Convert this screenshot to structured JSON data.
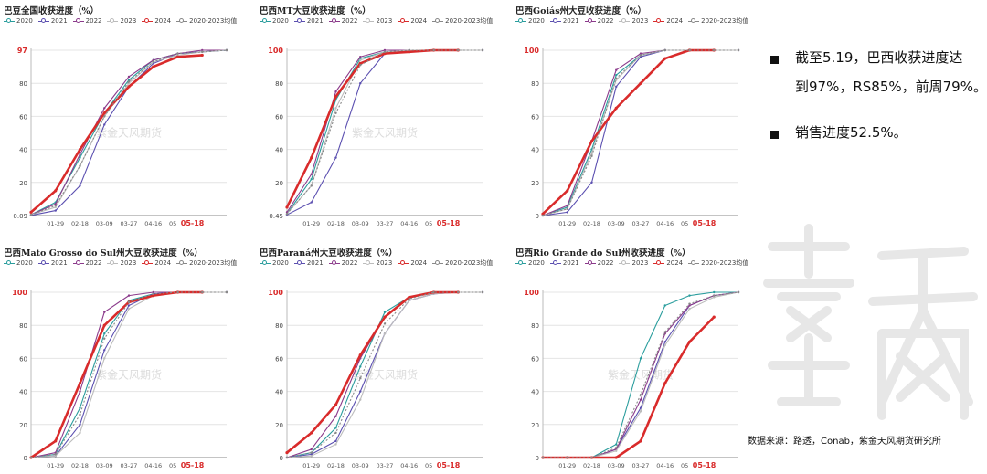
{
  "panels": [
    {
      "title": "巴豆全国收获进度（%）",
      "ylabels": [
        "0.09",
        "20",
        "40",
        "60",
        "80",
        "97"
      ],
      "current_label": "97",
      "x_labels": [
        "01-29",
        "02-18",
        "03-09",
        "03-27",
        "04-16",
        "05",
        "05-18"
      ],
      "watermark": "紫金天风期货"
    },
    {
      "title": "巴西MT大豆收获进度（%）",
      "ylabels": [
        "0.45",
        "20",
        "40",
        "60",
        "80",
        "100"
      ],
      "current_label": "100",
      "x_labels": [
        "01-29",
        "02-18",
        "03-09",
        "03-27",
        "04-16",
        "05",
        "05-18"
      ],
      "watermark": "紫金天风期货"
    },
    {
      "title": "巴西Goiás州大豆收获进度（%）",
      "ylabels": [
        "0",
        "20",
        "40",
        "60",
        "80",
        "100"
      ],
      "current_label": "100",
      "x_labels": [
        "01-29",
        "02-18",
        "03-09",
        "03-27",
        "04-16",
        "05",
        "05-18"
      ],
      "watermark": ""
    },
    {
      "title": "巴西Mato Grosso do Sul州大豆收获进度（%）",
      "ylabels": [
        "0",
        "20",
        "40",
        "60",
        "80",
        "100"
      ],
      "current_label": "100",
      "x_labels": [
        "01-29",
        "02-18",
        "03-09",
        "03-27",
        "04-16",
        "05",
        "05-18"
      ],
      "watermark": "紫金天风期货"
    },
    {
      "title": "巴西Paraná州大豆收获进度（%）",
      "ylabels": [
        "0",
        "20",
        "40",
        "60",
        "80",
        "100"
      ],
      "current_label": "100",
      "x_labels": [
        "01-29",
        "02-18",
        "03-09",
        "03-27",
        "04-16",
        "05",
        "05-18"
      ],
      "watermark": "紫金天风期货"
    },
    {
      "title": "巴西Rio Grande do Sul州收获进度（%）",
      "ylabels": [
        "0",
        "20",
        "40",
        "60",
        "80",
        "100"
      ],
      "current_label": "85",
      "x_labels": [
        "01-29",
        "02-18",
        "03-09",
        "03-27",
        "04-16",
        "05",
        "05-18"
      ],
      "watermark": "紫金天风期货"
    }
  ],
  "legend": [
    "2020",
    "2021",
    "2022",
    "2023",
    "2024",
    "2020-2023均值"
  ],
  "colors": {
    "2020": "#2a9d9d",
    "2021": "#5b4fb0",
    "2022": "#8b3a8b",
    "2023": "#bcbcbc",
    "2024": "#d92b2b",
    "avg": "#888888"
  },
  "bullets": [
    "截至5.19，巴西收获进度达到97%，RS85%，前周79%。",
    "销售进度52.5%。"
  ],
  "bullet_lines": [
    [
      "截至5.19，巴西收获进度达",
      "到97%，RS85%，前周79%。"
    ],
    [
      "销售进度52.5%。"
    ]
  ],
  "source": "数据来源：路透，Conab，紫金天风期货研究所",
  "chart_data": [
    {
      "type": "line",
      "title": "巴豆全国收获进度（%）",
      "x": [
        "01-09",
        "01-29",
        "02-18",
        "03-09",
        "03-27",
        "04-16",
        "05-06",
        "05-18",
        "06-05"
      ],
      "series": [
        {
          "name": "2020",
          "values": [
            0.5,
            8,
            35,
            62,
            82,
            94,
            98,
            99,
            100
          ]
        },
        {
          "name": "2021",
          "values": [
            0.1,
            3,
            18,
            55,
            78,
            92,
            98,
            99,
            100
          ]
        },
        {
          "name": "2022",
          "values": [
            0.5,
            7,
            37,
            65,
            84,
            94,
            98,
            100,
            100
          ]
        },
        {
          "name": "2023",
          "values": [
            0.5,
            5,
            30,
            60,
            80,
            93,
            97,
            99,
            100
          ]
        },
        {
          "name": "2024",
          "values": [
            2,
            15,
            40,
            62,
            78,
            90,
            96,
            97,
            null
          ]
        },
        {
          "name": "2020-2023均值",
          "values": [
            0.4,
            6,
            30,
            60,
            81,
            93,
            98,
            99,
            100
          ]
        }
      ],
      "ylim": [
        0,
        100
      ]
    },
    {
      "type": "line",
      "title": "巴西MT大豆收获进度（%）",
      "x": [
        "01-09",
        "01-29",
        "02-18",
        "03-09",
        "03-27",
        "04-16",
        "05-06",
        "05-18",
        "06-05"
      ],
      "series": [
        {
          "name": "2020",
          "values": [
            1,
            22,
            70,
            95,
            99,
            100,
            100,
            100,
            100
          ]
        },
        {
          "name": "2021",
          "values": [
            0.45,
            8,
            35,
            80,
            98,
            100,
            100,
            100,
            100
          ]
        },
        {
          "name": "2022",
          "values": [
            2,
            25,
            75,
            96,
            100,
            100,
            100,
            100,
            100
          ]
        },
        {
          "name": "2023",
          "values": [
            1,
            18,
            65,
            94,
            99,
            100,
            100,
            100,
            100
          ]
        },
        {
          "name": "2024",
          "values": [
            5,
            35,
            72,
            92,
            98,
            99,
            100,
            100,
            null
          ]
        },
        {
          "name": "2020-2023均值",
          "values": [
            1,
            18,
            62,
            91,
            99,
            100,
            100,
            100,
            100
          ]
        }
      ],
      "ylim": [
        0,
        100
      ]
    },
    {
      "type": "line",
      "title": "巴西Goiás州大豆收获进度（%）",
      "x": [
        "01-09",
        "01-29",
        "02-18",
        "03-09",
        "03-27",
        "04-16",
        "05-06",
        "05-18",
        "06-05"
      ],
      "series": [
        {
          "name": "2020",
          "values": [
            0,
            5,
            40,
            85,
            97,
            100,
            100,
            100,
            100
          ]
        },
        {
          "name": "2021",
          "values": [
            0,
            2,
            20,
            78,
            96,
            100,
            100,
            100,
            100
          ]
        },
        {
          "name": "2022",
          "values": [
            0,
            6,
            45,
            88,
            98,
            100,
            100,
            100,
            100
          ]
        },
        {
          "name": "2023",
          "values": [
            0,
            4,
            38,
            82,
            97,
            100,
            100,
            100,
            100
          ]
        },
        {
          "name": "2024",
          "values": [
            1,
            15,
            45,
            65,
            80,
            95,
            100,
            100,
            null
          ]
        },
        {
          "name": "2020-2023均值",
          "values": [
            0,
            4,
            36,
            83,
            97,
            100,
            100,
            100,
            100
          ]
        }
      ],
      "ylim": [
        0,
        100
      ]
    },
    {
      "type": "line",
      "title": "巴西Mato Grosso do Sul州大豆收获进度（%）",
      "x": [
        "01-09",
        "01-29",
        "02-18",
        "03-09",
        "03-27",
        "04-16",
        "05-06",
        "05-18",
        "06-05"
      ],
      "series": [
        {
          "name": "2020",
          "values": [
            0,
            2,
            30,
            75,
            95,
            99,
            100,
            100,
            100
          ]
        },
        {
          "name": "2021",
          "values": [
            0,
            1,
            20,
            65,
            92,
            99,
            100,
            100,
            100
          ]
        },
        {
          "name": "2022",
          "values": [
            0,
            3,
            40,
            88,
            98,
            100,
            100,
            100,
            100
          ]
        },
        {
          "name": "2023",
          "values": [
            0,
            1,
            15,
            60,
            90,
            98,
            100,
            100,
            100
          ]
        },
        {
          "name": "2024",
          "values": [
            0,
            10,
            45,
            80,
            94,
            98,
            100,
            100,
            null
          ]
        },
        {
          "name": "2020-2023均值",
          "values": [
            0,
            2,
            26,
            72,
            94,
            99,
            100,
            100,
            100
          ]
        }
      ],
      "ylim": [
        0,
        100
      ]
    },
    {
      "type": "line",
      "title": "巴西Paraná州大豆收获进度（%）",
      "x": [
        "01-09",
        "01-29",
        "02-18",
        "03-09",
        "03-27",
        "04-16",
        "05-06",
        "05-18",
        "06-05"
      ],
      "series": [
        {
          "name": "2020",
          "values": [
            0,
            3,
            18,
            55,
            88,
            97,
            100,
            100,
            100
          ]
        },
        {
          "name": "2021",
          "values": [
            0,
            2,
            10,
            40,
            75,
            95,
            99,
            100,
            100
          ]
        },
        {
          "name": "2022",
          "values": [
            0,
            5,
            25,
            60,
            85,
            97,
            100,
            100,
            100
          ]
        },
        {
          "name": "2023",
          "values": [
            0,
            1,
            8,
            35,
            75,
            95,
            99,
            100,
            100
          ]
        },
        {
          "name": "2024",
          "values": [
            3,
            15,
            32,
            62,
            85,
            97,
            100,
            100,
            null
          ]
        },
        {
          "name": "2020-2023均值",
          "values": [
            0,
            3,
            15,
            48,
            81,
            96,
            100,
            100,
            100
          ]
        }
      ],
      "ylim": [
        0,
        100
      ]
    },
    {
      "type": "line",
      "title": "巴西Rio Grande do Sul州收获进度（%）",
      "x": [
        "01-09",
        "01-29",
        "02-18",
        "03-09",
        "03-27",
        "04-16",
        "05-06",
        "05-18",
        "06-05"
      ],
      "series": [
        {
          "name": "2020",
          "values": [
            0,
            0,
            0,
            8,
            60,
            92,
            98,
            100,
            100
          ]
        },
        {
          "name": "2021",
          "values": [
            0,
            0,
            0,
            5,
            30,
            70,
            92,
            98,
            100
          ]
        },
        {
          "name": "2022",
          "values": [
            0,
            0,
            0,
            5,
            35,
            75,
            92,
            98,
            100
          ]
        },
        {
          "name": "2023",
          "values": [
            0,
            0,
            0,
            4,
            28,
            68,
            90,
            97,
            100
          ]
        },
        {
          "name": "2024",
          "values": [
            0,
            0,
            0,
            0,
            10,
            45,
            70,
            85,
            null
          ]
        },
        {
          "name": "2020-2023均值",
          "values": [
            0,
            0,
            0,
            6,
            38,
            76,
            93,
            98,
            100
          ]
        }
      ],
      "ylim": [
        0,
        100
      ]
    }
  ]
}
